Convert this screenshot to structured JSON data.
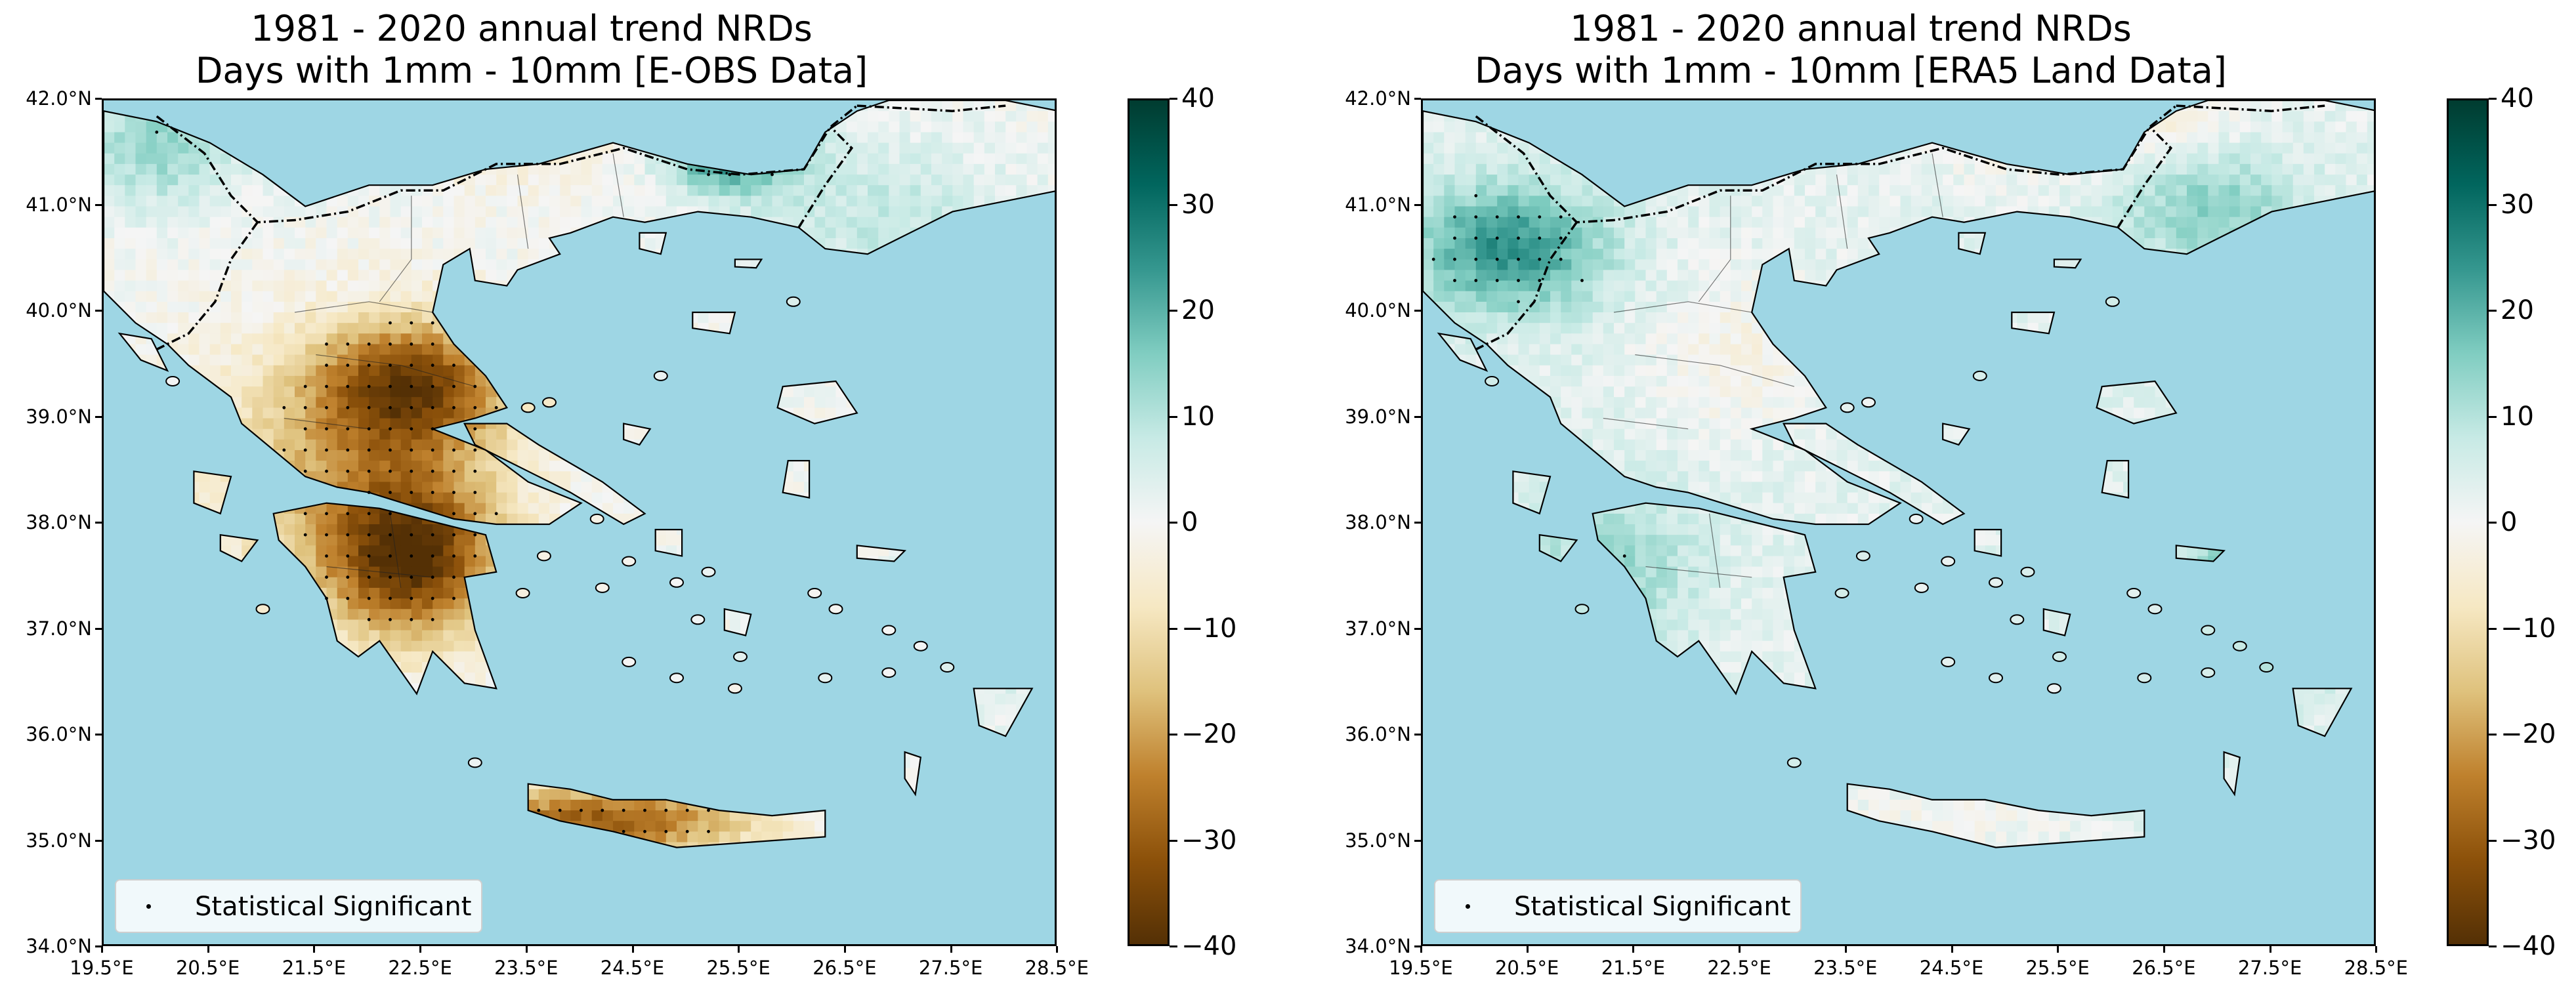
{
  "panels": [
    {
      "title_line1": "1981 - 2020 annual trend NRDs",
      "title_line2": "Days with 1mm - 10mm [E-OBS Data]",
      "legend_label": "Statistical Significant",
      "variant": "eobs"
    },
    {
      "title_line1": "1981 - 2020 annual trend NRDs",
      "title_line2": "Days with 1mm - 10mm [ERA5 Land Data]",
      "legend_label": "Statistical Significant",
      "variant": "era5"
    }
  ],
  "lat_labels": [
    "42.0°N",
    "41.0°N",
    "40.0°N",
    "39.0°N",
    "38.0°N",
    "37.0°N",
    "36.0°N",
    "35.0°N",
    "34.0°N"
  ],
  "lon_labels": [
    "19.5°E",
    "20.5°E",
    "21.5°E",
    "22.5°E",
    "23.5°E",
    "24.5°E",
    "25.5°E",
    "26.5°E",
    "27.5°E",
    "28.5°E"
  ],
  "colorbar": {
    "ticks": [
      "40",
      "30",
      "20",
      "10",
      "0",
      "−10",
      "−20",
      "−30",
      "−40"
    ],
    "min": -40,
    "max": 40,
    "colors": [
      "#543005",
      "#8c510a",
      "#bf812d",
      "#dfc27d",
      "#f6e8c3",
      "#f5f5f5",
      "#c7eae5",
      "#80cdc1",
      "#35978f",
      "#01665e",
      "#003c30"
    ]
  },
  "colors": {
    "sea": "#9ed6e4",
    "coast": "#000000"
  }
}
